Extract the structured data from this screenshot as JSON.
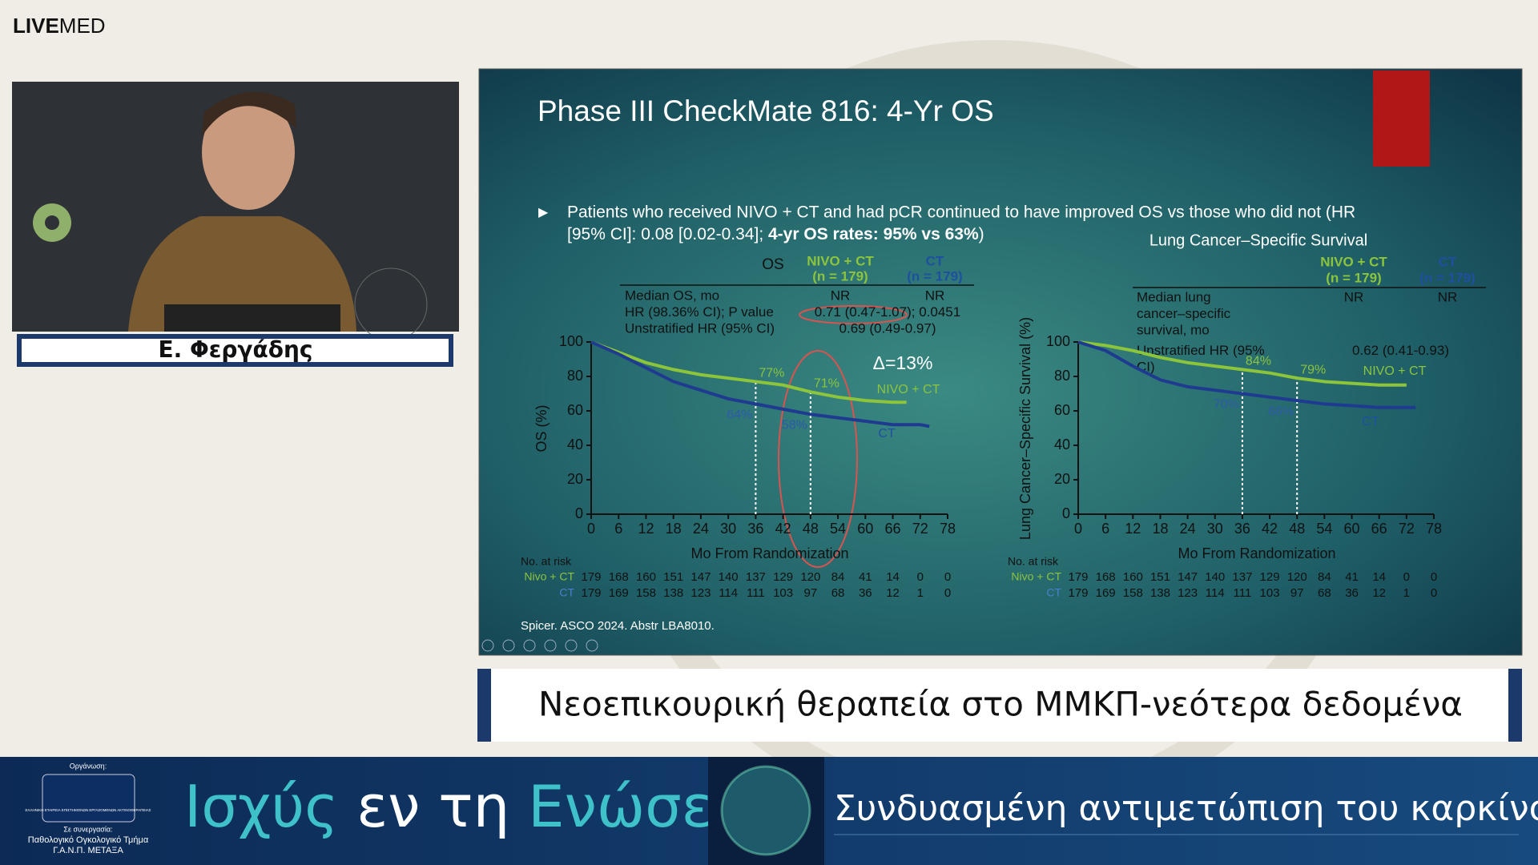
{
  "header": {
    "logo_bold": "LIVE",
    "logo_light": "MED"
  },
  "speaker": {
    "name": "Ε. Φεργάδης"
  },
  "slide": {
    "title": "Phase III CheckMate 816: 4-Yr OS",
    "bullet": {
      "line1": "Patients who received NIVO + CT and had pCR continued to have improved OS vs those who did not (HR",
      "line2": "[95% CI]: 0.08 [0.02-0.34]; ",
      "line2_bold": "4-yr OS rates: 95% vs 63%",
      "line2_end": ")"
    },
    "reference": "Spicer. ASCO 2024. Abstr LBA8010."
  },
  "chart_data": [
    {
      "type": "line",
      "y_label": "OS (%)",
      "x_label": "Mo From Randomization",
      "delta_label": "Δ=13%",
      "table": {
        "corner": "OS",
        "columns": [
          [
            "NIVO + CT",
            "(n = 179)"
          ],
          [
            "CT",
            "(n = 179)"
          ]
        ],
        "rows": [
          {
            "label": [
              "Median OS, mo"
            ],
            "cells": [
              "NR",
              "NR"
            ]
          },
          {
            "label": [
              "HR (98.36% CI); P value"
            ],
            "cells": [
              "0.71 (0.47-1.07); 0.0451"
            ]
          },
          {
            "label": [
              "Unstratified HR (95% CI)"
            ],
            "cells": [
              "0.69 (0.49-0.97)"
            ]
          }
        ]
      },
      "xlim": [
        0,
        78
      ],
      "xticks": [
        0,
        6,
        12,
        18,
        24,
        30,
        36,
        42,
        48,
        54,
        60,
        66,
        72,
        78
      ],
      "ylim": [
        0,
        100
      ],
      "yticks": [
        0,
        20,
        40,
        60,
        80,
        100
      ],
      "ref_lines": [
        36,
        48
      ],
      "series": [
        {
          "name": "NIVO + CT",
          "color": "#8cc43c",
          "x": [
            0,
            3,
            6,
            9,
            12,
            18,
            24,
            30,
            36,
            42,
            48,
            54,
            60,
            66,
            69
          ],
          "values": [
            100,
            97,
            94,
            91,
            88,
            84,
            81,
            79,
            77,
            75,
            71,
            68,
            66,
            65,
            65
          ]
        },
        {
          "name": "CT",
          "color": "#1f3b8f",
          "x": [
            0,
            6,
            12,
            18,
            24,
            30,
            36,
            42,
            48,
            54,
            60,
            66,
            72,
            74
          ],
          "values": [
            100,
            93,
            85,
            77,
            72,
            67,
            64,
            61,
            58,
            56,
            54,
            52,
            52,
            51
          ]
        }
      ],
      "annotations": [
        {
          "series": 0,
          "x": 36,
          "y": 77,
          "label": "77%"
        },
        {
          "series": 0,
          "x": 48,
          "y": 71,
          "label": "71%"
        },
        {
          "series": 1,
          "x": 36,
          "y": 64,
          "label": "64%"
        },
        {
          "series": 1,
          "x": 48,
          "y": 58,
          "label": "58%"
        }
      ],
      "risk": {
        "title": "No. at risk",
        "rows": [
          {
            "label": "Nivo + CT",
            "values": [
              179,
              168,
              160,
              151,
              147,
              140,
              137,
              129,
              120,
              84,
              41,
              14,
              0,
              0
            ]
          },
          {
            "label": "CT",
            "values": [
              179,
              169,
              158,
              138,
              123,
              114,
              111,
              103,
              97,
              68,
              36,
              12,
              1,
              0
            ]
          }
        ]
      }
    },
    {
      "type": "line",
      "title": "Lung Cancer–Specific Survival",
      "y_label": "Lung Cancer–Specific Survival (%)",
      "x_label": "Mo From Randomization",
      "table": {
        "columns": [
          [
            "NIVO + CT",
            "(n = 179)"
          ],
          [
            "CT",
            "(n = 179)"
          ]
        ],
        "rows": [
          {
            "label": [
              "Median lung",
              "cancer–specific",
              "survival, mo"
            ],
            "cells": [
              "NR",
              "NR"
            ]
          },
          {
            "label": [
              "Unstratified HR (95%",
              "CI)"
            ],
            "cells": [
              "0.62 (0.41-0.93)"
            ]
          }
        ]
      },
      "xlim": [
        0,
        78
      ],
      "xticks": [
        0,
        6,
        12,
        18,
        24,
        30,
        36,
        42,
        48,
        54,
        60,
        66,
        72,
        78
      ],
      "ylim": [
        0,
        100
      ],
      "yticks": [
        0,
        20,
        40,
        60,
        80,
        100
      ],
      "ref_lines": [
        36,
        48
      ],
      "series": [
        {
          "name": "NIVO + CT",
          "color": "#8cc43c",
          "x": [
            0,
            6,
            12,
            18,
            24,
            30,
            36,
            42,
            48,
            54,
            60,
            66,
            72
          ],
          "values": [
            100,
            98,
            95,
            91,
            88,
            86,
            84,
            82,
            79,
            77,
            76,
            75,
            75
          ]
        },
        {
          "name": "CT",
          "color": "#1f3b8f",
          "x": [
            0,
            6,
            12,
            18,
            24,
            30,
            36,
            42,
            48,
            54,
            60,
            66,
            72,
            74
          ],
          "values": [
            100,
            95,
            86,
            78,
            74,
            72,
            70,
            68,
            66,
            64,
            63,
            62,
            62,
            62
          ]
        }
      ],
      "annotations": [
        {
          "series": 0,
          "x": 36,
          "y": 84,
          "label": "84%"
        },
        {
          "series": 0,
          "x": 48,
          "y": 79,
          "label": "79%"
        },
        {
          "series": 1,
          "x": 36,
          "y": 70,
          "label": "70%"
        },
        {
          "series": 1,
          "x": 48,
          "y": 66,
          "label": "66%"
        }
      ],
      "risk": {
        "title": "No. at risk",
        "rows": [
          {
            "label": "Nivo + CT",
            "values": [
              179,
              168,
              160,
              151,
              147,
              140,
              137,
              129,
              120,
              84,
              41,
              14,
              0,
              0
            ]
          },
          {
            "label": "CT",
            "values": [
              179,
              169,
              158,
              138,
              123,
              114,
              111,
              103,
              97,
              68,
              36,
              12,
              1,
              0
            ]
          }
        ]
      }
    }
  ],
  "caption": "Νεοεπικουρική θεραπεία στο ΜΜΚΠ-νεότερα δεδομένα",
  "banner": {
    "organizer_label": "Οργάνωση:",
    "organizer_logo": "ΕΛΛΗΝΙΚΗ ΕΤΑΙΡΕΙΑ ΕΠΙΣΤΗΜΟΝΩΝ ΕΡΓΑΖΟΜΕΝΩΝ ΑΚΤΙΝΟΘΕΡΑΠΕΙΑΣ",
    "partner_label": "Σε συνεργασία:",
    "partner_line1": "Παθολογικό Ογκολογικό Τμήμα",
    "partner_line2": "Γ.Α.Ν.Π. ΜΕΤΑΞΑ",
    "motto_1": "Ισχύς",
    "motto_2": " εν τη ",
    "motto_3": "Ενώσει",
    "subtitle": "Συνδυασμένη αντιμετώπιση του καρκίνου"
  }
}
